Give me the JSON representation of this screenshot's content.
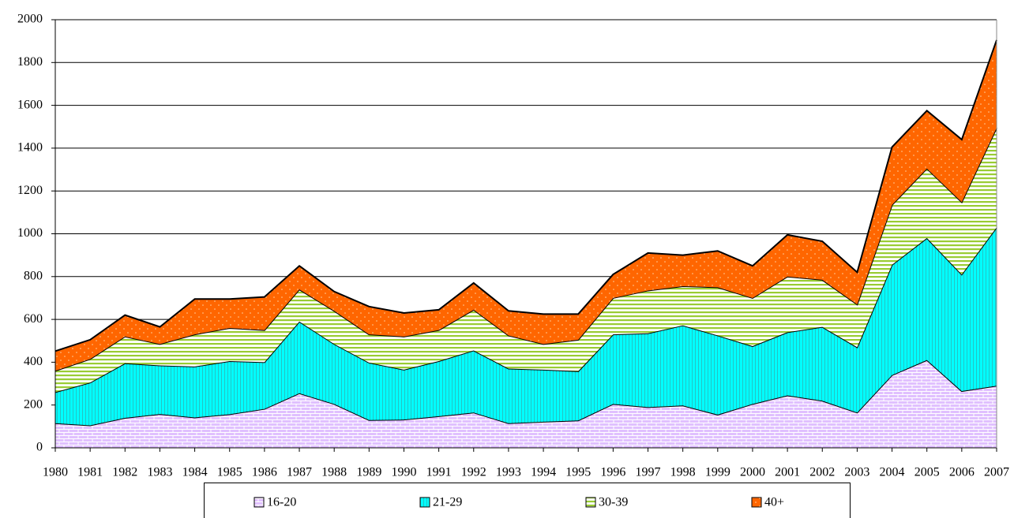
{
  "chart_data": {
    "type": "stacked_area",
    "categories": [
      "1980",
      "1981",
      "1982",
      "1983",
      "1984",
      "1985",
      "1986",
      "1987",
      "1988",
      "1989",
      "1990",
      "1991",
      "1992",
      "1993",
      "1994",
      "1995",
      "1996",
      "1997",
      "1998",
      "1999",
      "2000",
      "2001",
      "2002",
      "2003",
      "2004",
      "2005",
      "2006",
      "2007"
    ],
    "series": [
      {
        "name": "16-20",
        "color": "#e0c0ff",
        "values": [
          115,
          105,
          140,
          158,
          142,
          157,
          182,
          255,
          205,
          130,
          132,
          148,
          165,
          115,
          122,
          128,
          205,
          190,
          198,
          155,
          205,
          245,
          220,
          165,
          340,
          410,
          265,
          290
        ]
      },
      {
        "name": "21-29",
        "color": "#00ffff",
        "values": [
          145,
          200,
          255,
          227,
          238,
          248,
          218,
          335,
          280,
          268,
          233,
          257,
          290,
          255,
          243,
          230,
          325,
          345,
          374,
          370,
          270,
          295,
          345,
          305,
          515,
          570,
          545,
          740
        ]
      },
      {
        "name": "30-39",
        "color": "#99cc33",
        "values": [
          100,
          110,
          125,
          100,
          150,
          155,
          150,
          150,
          155,
          132,
          155,
          145,
          190,
          155,
          120,
          147,
          170,
          200,
          183,
          225,
          225,
          260,
          220,
          200,
          280,
          325,
          338,
          465
        ]
      },
      {
        "name": "40+",
        "color": "#ff6600",
        "values": [
          92,
          90,
          100,
          80,
          165,
          135,
          155,
          110,
          90,
          130,
          110,
          95,
          125,
          115,
          140,
          120,
          110,
          175,
          145,
          170,
          150,
          195,
          180,
          150,
          270,
          270,
          292,
          410
        ]
      }
    ],
    "ylim": [
      0,
      2000
    ],
    "yticks": [
      0,
      200,
      400,
      600,
      800,
      1000,
      1200,
      1400,
      1600,
      1800,
      2000
    ],
    "grid": true,
    "legend": "bottom"
  }
}
